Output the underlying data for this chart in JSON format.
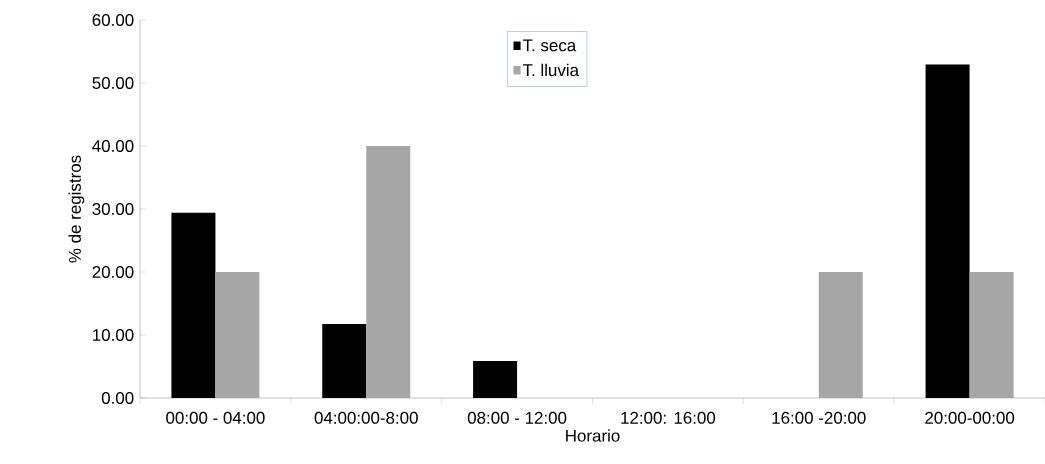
{
  "chart_data": {
    "type": "bar",
    "xlabel": "Horario",
    "ylabel": "% de registros",
    "categories": [
      "00:00 - 04:00",
      "04:00:00-8:00",
      "08:00 - 12:00",
      "12:00: 16:00",
      "16:00 -20:00",
      "20:00-00:00"
    ],
    "series": [
      {
        "name": "T. seca",
        "color": "#000000",
        "values": [
          29.41,
          11.76,
          5.88,
          0,
          0,
          52.94
        ]
      },
      {
        "name": "T. lluvia",
        "color": "#a6a6a6",
        "values": [
          20,
          40,
          0,
          0,
          20,
          20
        ]
      }
    ],
    "ylim": [
      0,
      60
    ],
    "yticks": [
      {
        "value": 0,
        "label": "0.00"
      },
      {
        "value": 10,
        "label": "10.00"
      },
      {
        "value": 20,
        "label": "20.00"
      },
      {
        "value": 30,
        "label": "30.00"
      },
      {
        "value": 40,
        "label": "40.00"
      },
      {
        "value": 50,
        "label": "50.00"
      },
      {
        "value": 60,
        "label": "60.00"
      }
    ],
    "grid": false,
    "legend": "top"
  }
}
